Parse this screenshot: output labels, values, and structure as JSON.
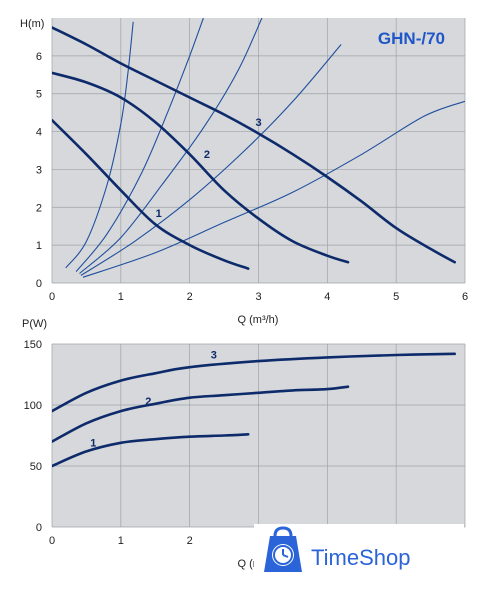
{
  "colors": {
    "plot_bg": "#d6d8db",
    "grid": "#9ea2a8",
    "curve": "#0d2a6b",
    "system_curve": "#1f4f9e",
    "model_text": "#1f57c9",
    "brand": "#2b63d8"
  },
  "brand": {
    "name": "TimeShop",
    "icon": "clock-bag-icon"
  },
  "chart_data": [
    {
      "type": "line",
      "title": "GHN-/70",
      "ylabel": "H(m)",
      "xlabel": "Q (m³/h)",
      "xlim": [
        0,
        6
      ],
      "ylim": [
        0,
        7
      ],
      "xticks": [
        0,
        1,
        2,
        3,
        4,
        5,
        6
      ],
      "yticks": [
        0,
        1,
        2,
        3,
        4,
        5,
        6
      ],
      "grid": true,
      "series": [
        {
          "name": "1",
          "points": [
            [
              0,
              4.3
            ],
            [
              0.5,
              3.4
            ],
            [
              1.0,
              2.45
            ],
            [
              1.5,
              1.55
            ],
            [
              2.0,
              1.0
            ],
            [
              2.5,
              0.6
            ],
            [
              2.85,
              0.38
            ]
          ]
        },
        {
          "name": "2",
          "points": [
            [
              0,
              5.55
            ],
            [
              0.5,
              5.3
            ],
            [
              1.0,
              4.9
            ],
            [
              1.5,
              4.25
            ],
            [
              2.0,
              3.4
            ],
            [
              2.5,
              2.45
            ],
            [
              3.0,
              1.7
            ],
            [
              3.5,
              1.1
            ],
            [
              4.0,
              0.72
            ],
            [
              4.3,
              0.55
            ]
          ]
        },
        {
          "name": "3",
          "points": [
            [
              0,
              6.75
            ],
            [
              0.5,
              6.3
            ],
            [
              1.0,
              5.8
            ],
            [
              1.5,
              5.35
            ],
            [
              2.0,
              4.9
            ],
            [
              2.5,
              4.45
            ],
            [
              3.0,
              3.95
            ],
            [
              3.5,
              3.4
            ],
            [
              4.0,
              2.8
            ],
            [
              4.5,
              2.15
            ],
            [
              5.0,
              1.45
            ],
            [
              5.5,
              0.9
            ],
            [
              5.85,
              0.55
            ]
          ]
        }
      ],
      "system_curves": [
        {
          "points": [
            [
              0.2,
              0.4
            ],
            [
              0.5,
              1.1
            ],
            [
              0.8,
              2.6
            ],
            [
              1.0,
              4.2
            ],
            [
              1.1,
              5.5
            ],
            [
              1.18,
              6.9
            ]
          ]
        },
        {
          "points": [
            [
              0.35,
              0.3
            ],
            [
              0.8,
              1.3
            ],
            [
              1.3,
              2.9
            ],
            [
              1.7,
              4.6
            ],
            [
              2.0,
              6.0
            ],
            [
              2.2,
              7.0
            ]
          ]
        },
        {
          "names": [],
          "points": [
            [
              0.4,
              0.25
            ],
            [
              1.0,
              1.2
            ],
            [
              1.6,
              2.6
            ],
            [
              2.2,
              4.1
            ],
            [
              2.7,
              5.6
            ],
            [
              3.05,
              7.0
            ]
          ]
        },
        {
          "points": [
            [
              0.42,
              0.2
            ],
            [
              1.2,
              1.1
            ],
            [
              2.0,
              2.2
            ],
            [
              2.8,
              3.5
            ],
            [
              3.5,
              4.8
            ],
            [
              4.2,
              6.3
            ]
          ]
        },
        {
          "points": [
            [
              0.45,
              0.15
            ],
            [
              1.5,
              0.8
            ],
            [
              2.5,
              1.6
            ],
            [
              3.5,
              2.4
            ],
            [
              4.5,
              3.4
            ],
            [
              5.4,
              4.4
            ],
            [
              6.0,
              4.8
            ]
          ]
        }
      ],
      "curve_labels": [
        {
          "text": "1",
          "x": 1.55,
          "y": 1.75
        },
        {
          "text": "2",
          "x": 2.25,
          "y": 3.3
        },
        {
          "text": "3",
          "x": 3.0,
          "y": 4.15
        }
      ]
    },
    {
      "type": "line",
      "ylabel": "P(W)",
      "xlabel": "Q (m³/h)",
      "xlim": [
        0,
        6
      ],
      "ylim": [
        0,
        150
      ],
      "xticks": [
        0,
        1,
        2
      ],
      "yticks": [
        0,
        50,
        100,
        150
      ],
      "grid": true,
      "series": [
        {
          "name": "1",
          "points": [
            [
              0,
              50
            ],
            [
              0.5,
              62
            ],
            [
              1.0,
              69
            ],
            [
              1.5,
              72
            ],
            [
              2.0,
              74
            ],
            [
              2.5,
              75
            ],
            [
              2.85,
              76
            ]
          ]
        },
        {
          "name": "2",
          "points": [
            [
              0,
              70
            ],
            [
              0.5,
              85
            ],
            [
              1.0,
              95
            ],
            [
              1.5,
              101
            ],
            [
              2.0,
              106
            ],
            [
              2.5,
              108
            ],
            [
              3.0,
              110
            ],
            [
              3.5,
              112
            ],
            [
              4.0,
              113
            ],
            [
              4.3,
              115
            ]
          ]
        },
        {
          "name": "3",
          "points": [
            [
              0,
              95
            ],
            [
              0.5,
              110
            ],
            [
              1.0,
              120
            ],
            [
              1.5,
              126
            ],
            [
              2.0,
              131
            ],
            [
              3.0,
              136
            ],
            [
              4.0,
              139
            ],
            [
              5.0,
              141
            ],
            [
              5.85,
              142
            ]
          ]
        }
      ],
      "curve_labels": [
        {
          "text": "1",
          "x": 0.6,
          "y": 66
        },
        {
          "text": "2",
          "x": 1.4,
          "y": 100
        },
        {
          "text": "3",
          "x": 2.35,
          "y": 138
        }
      ]
    }
  ]
}
